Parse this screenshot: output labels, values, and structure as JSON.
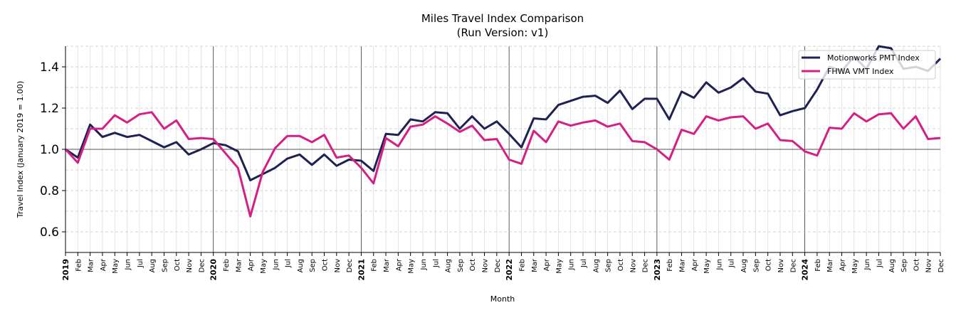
{
  "chart_data": {
    "type": "line",
    "title": "Miles Travel Index Comparison",
    "subtitle": "(Run Version: v1)",
    "xlabel": "Month",
    "ylabel": "Travel Index (January 2019 = 1.00)",
    "ylim": [
      0.5,
      1.5
    ],
    "yticks": [
      0.6,
      0.8,
      1.0,
      1.2,
      1.4
    ],
    "grid": true,
    "legend_position": "top-right",
    "reference_line": 1.0,
    "years": [
      "2019",
      "2020",
      "2021",
      "2022",
      "2023",
      "2024"
    ],
    "month_labels": [
      "Feb",
      "Mar",
      "Apr",
      "May",
      "Jun",
      "Jul",
      "Aug",
      "Sep",
      "Oct",
      "Nov",
      "Dec"
    ],
    "series": [
      {
        "name": "Motionworks PMT Index",
        "color": "#1f2152",
        "values": [
          1.0,
          0.96,
          1.12,
          1.06,
          1.08,
          1.06,
          1.07,
          1.04,
          1.01,
          1.035,
          0.975,
          1.0,
          1.03,
          1.02,
          0.99,
          0.85,
          0.88,
          0.91,
          0.955,
          0.975,
          0.925,
          0.975,
          0.92,
          0.95,
          0.945,
          0.895,
          1.075,
          1.07,
          1.145,
          1.135,
          1.18,
          1.175,
          1.1,
          1.16,
          1.1,
          1.135,
          1.075,
          1.01,
          1.15,
          1.145,
          1.215,
          1.235,
          1.255,
          1.26,
          1.225,
          1.285,
          1.195,
          1.245,
          1.245,
          1.145,
          1.28,
          1.25,
          1.325,
          1.275,
          1.3,
          1.345,
          1.28,
          1.27,
          1.165,
          1.185,
          1.2,
          1.29,
          1.4,
          1.38,
          1.45,
          1.39,
          1.5,
          1.49,
          1.39,
          1.4,
          1.38,
          1.44
        ]
      },
      {
        "name": "FHWA VMT Index",
        "color": "#d41f85",
        "values": [
          1.0,
          0.935,
          1.1,
          1.1,
          1.165,
          1.13,
          1.17,
          1.18,
          1.1,
          1.14,
          1.05,
          1.055,
          1.05,
          0.98,
          0.91,
          0.675,
          0.89,
          1.005,
          1.065,
          1.065,
          1.035,
          1.07,
          0.96,
          0.97,
          0.91,
          0.835,
          1.055,
          1.015,
          1.11,
          1.12,
          1.16,
          1.125,
          1.085,
          1.115,
          1.045,
          1.05,
          0.95,
          0.93,
          1.09,
          1.035,
          1.135,
          1.115,
          1.13,
          1.14,
          1.11,
          1.125,
          1.04,
          1.035,
          1.0,
          0.95,
          1.095,
          1.075,
          1.16,
          1.14,
          1.155,
          1.16,
          1.1,
          1.125,
          1.045,
          1.04,
          0.99,
          0.97,
          1.105,
          1.1,
          1.175,
          1.135,
          1.17,
          1.175,
          1.1,
          1.16,
          1.05,
          1.055
        ]
      }
    ]
  }
}
